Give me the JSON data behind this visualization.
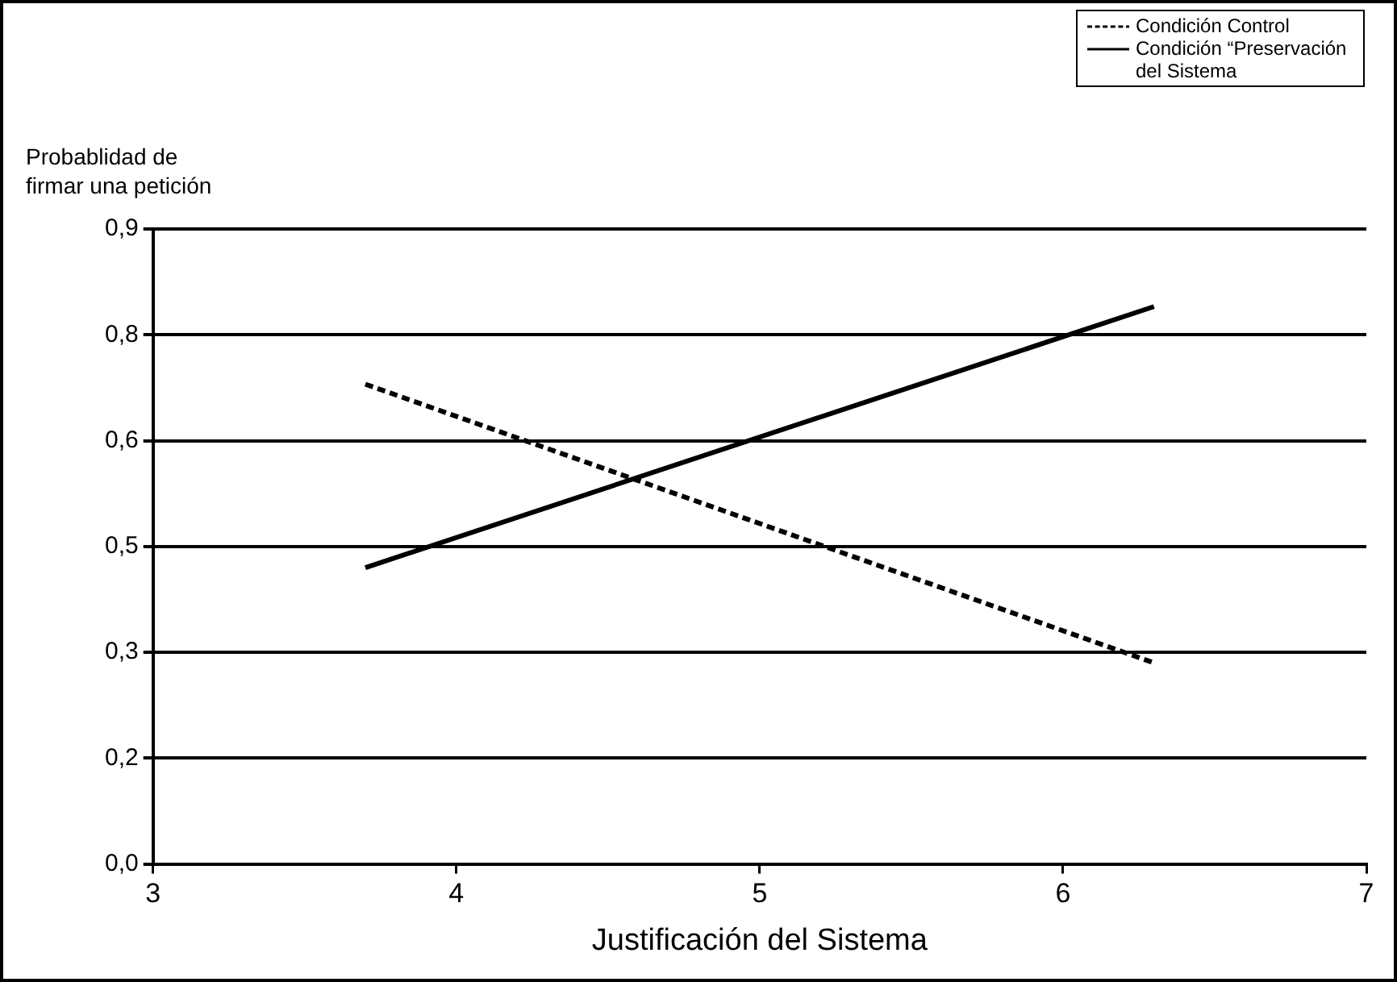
{
  "chart_data": {
    "type": "line",
    "xlabel": "Justificación del Sistema",
    "ylabel": "Probablidad de\nfirmar una petición",
    "xlim": [
      3,
      7
    ],
    "xticks": [
      3,
      4,
      5,
      6,
      7
    ],
    "ylim": [
      0,
      0.9
    ],
    "yticks": [
      {
        "value": 0,
        "label": "0,0"
      },
      {
        "value": 0.15,
        "label": "0,2"
      },
      {
        "value": 0.3,
        "label": "0,3"
      },
      {
        "value": 0.45,
        "label": "0,5"
      },
      {
        "value": 0.6,
        "label": "0,6"
      },
      {
        "value": 0.75,
        "label": "0,8"
      },
      {
        "value": 0.9,
        "label": "0,9"
      }
    ],
    "x": [
      3.7,
      6.3
    ],
    "grid": "y",
    "legend": "top right",
    "marker": "none",
    "series": [
      {
        "name": "Condición  Control",
        "color": "#000000",
        "line_style": "dashed",
        "values": [
          0.68,
          0.285
        ]
      },
      {
        "name": "Condición “Preservación del Sistema",
        "color": "#000000",
        "line_style": "solid",
        "values": [
          0.42,
          0.79
        ]
      }
    ]
  }
}
